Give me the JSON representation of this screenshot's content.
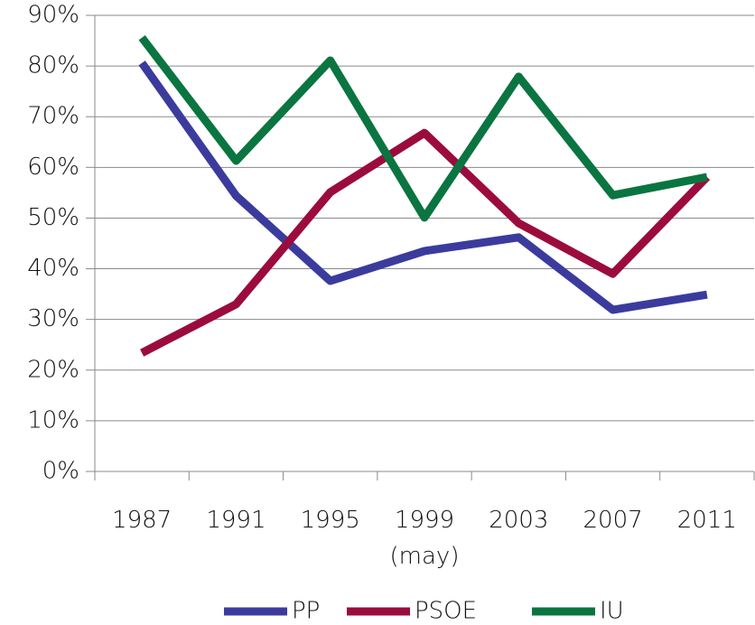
{
  "chart_data": {
    "type": "line",
    "categories": [
      "1987",
      "1991",
      "1995",
      "1999 (may)",
      "2003",
      "2007",
      "2011"
    ],
    "series": [
      {
        "name": "PP",
        "color": "#3b3b9e",
        "values": [
          80.6,
          54.4,
          37.6,
          43.5,
          46.2,
          31.9,
          34.9
        ]
      },
      {
        "name": "PSOE",
        "color": "#9b0c3c",
        "values": [
          23.4,
          33.0,
          55.1,
          66.8,
          49.0,
          39.0,
          58.1
        ]
      },
      {
        "name": "IU",
        "color": "#0a7540",
        "values": [
          85.6,
          61.3,
          81.1,
          50.1,
          77.9,
          54.5,
          58.1
        ]
      }
    ],
    "ylim": [
      0,
      90
    ],
    "yticks": [
      {
        "value": 0,
        "label": "0%"
      },
      {
        "value": 10,
        "label": "10%"
      },
      {
        "value": 20,
        "label": "20%"
      },
      {
        "value": 30,
        "label": "30%"
      },
      {
        "value": 40,
        "label": "40%"
      },
      {
        "value": 50,
        "label": "50%"
      },
      {
        "value": 60,
        "label": "60%"
      },
      {
        "value": 70,
        "label": "70%"
      },
      {
        "value": 80,
        "label": "80%"
      },
      {
        "value": 90,
        "label": "90%"
      }
    ],
    "grid": true,
    "legend": "bottom"
  }
}
